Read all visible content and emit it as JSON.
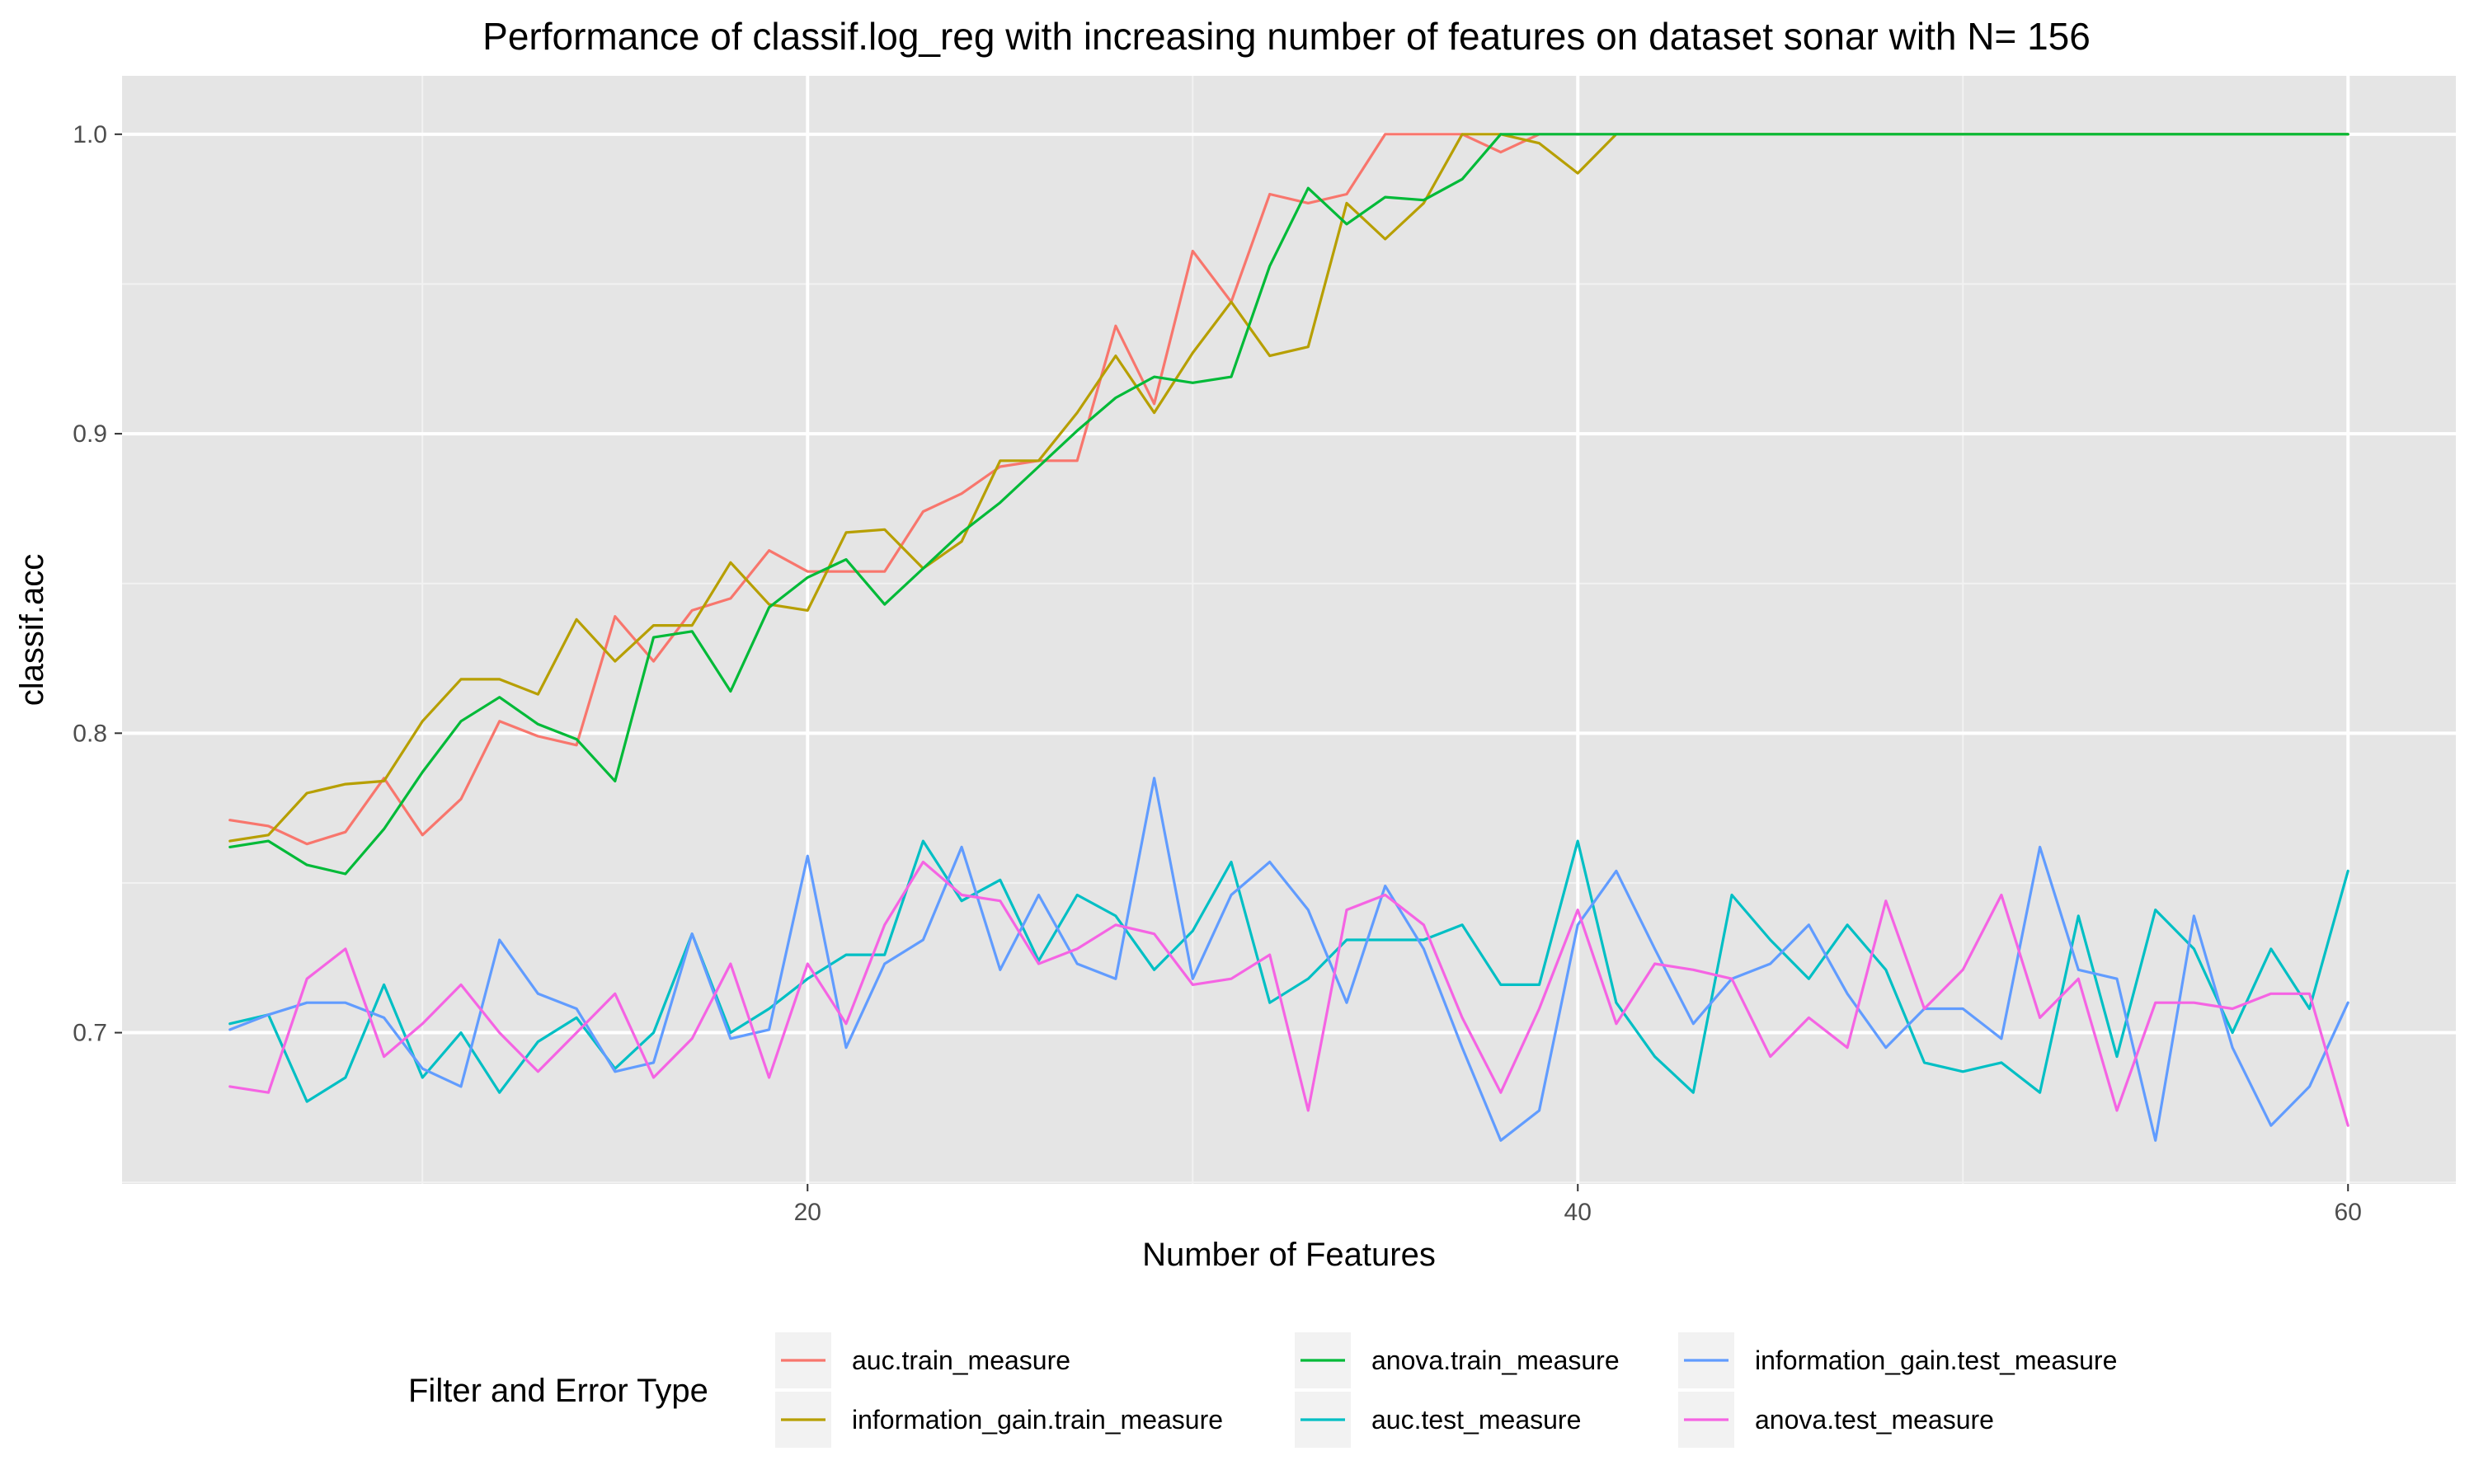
{
  "chart_data": {
    "type": "line",
    "title": "Performance of classif.log_reg with increasing number of features on dataset sonar with N= 156",
    "xlabel": "Number of Features",
    "ylabel": "classif.acc",
    "xlim": [
      2.2,
      62.8
    ],
    "ylim": [
      0.6495,
      1.0195
    ],
    "x_ticks": [
      20,
      40,
      60
    ],
    "x_minor_ticks": [
      10,
      30,
      50
    ],
    "y_ticks": [
      0.7,
      0.8,
      0.9,
      1.0
    ],
    "y_tick_labels": [
      "0.7",
      "0.8",
      "0.9",
      "1.0"
    ],
    "y_minor_ticks": [
      0.65,
      0.75,
      0.85,
      0.95
    ],
    "grid": true,
    "panel_background": "#e5e5e5",
    "legend": {
      "title": "Filter and Error Type",
      "position": "bottom"
    },
    "x": [
      5,
      6,
      7,
      8,
      9,
      10,
      11,
      12,
      13,
      14,
      15,
      16,
      17,
      18,
      19,
      20,
      21,
      22,
      23,
      24,
      25,
      26,
      27,
      28,
      29,
      30,
      31,
      32,
      33,
      34,
      35,
      36,
      37,
      38,
      39,
      40,
      41,
      42,
      43,
      44,
      45,
      46,
      47,
      48,
      49,
      50,
      51,
      52,
      53,
      54,
      55,
      56,
      57,
      58,
      59,
      60
    ],
    "series": [
      {
        "name": "auc.train_measure",
        "color": "#F8766D",
        "values": [
          0.771,
          0.769,
          0.763,
          0.767,
          0.785,
          0.766,
          0.778,
          0.804,
          0.799,
          0.796,
          0.839,
          0.824,
          0.841,
          0.845,
          0.861,
          0.854,
          0.854,
          0.854,
          0.874,
          0.88,
          0.889,
          0.891,
          0.891,
          0.936,
          0.91,
          0.961,
          0.944,
          0.98,
          0.977,
          0.98,
          1.0,
          1.0,
          1.0,
          0.994,
          1.0,
          1.0,
          1.0,
          1.0,
          1.0,
          1.0,
          1.0,
          1.0,
          1.0,
          1.0,
          1.0,
          1.0,
          1.0,
          1.0,
          1.0,
          1.0,
          1.0,
          1.0,
          1.0,
          1.0,
          1.0,
          1.0
        ]
      },
      {
        "name": "information_gain.train_measure",
        "color": "#B79F00",
        "values": [
          0.764,
          0.766,
          0.78,
          0.783,
          0.784,
          0.804,
          0.818,
          0.818,
          0.813,
          0.838,
          0.824,
          0.836,
          0.836,
          0.857,
          0.843,
          0.841,
          0.867,
          0.868,
          0.855,
          0.864,
          0.891,
          0.891,
          0.907,
          0.926,
          0.907,
          0.927,
          0.944,
          0.926,
          0.929,
          0.977,
          0.965,
          0.977,
          1.0,
          1.0,
          0.997,
          0.987,
          1.0,
          1.0,
          1.0,
          1.0,
          1.0,
          1.0,
          1.0,
          1.0,
          1.0,
          1.0,
          1.0,
          1.0,
          1.0,
          1.0,
          1.0,
          1.0,
          1.0,
          1.0,
          1.0,
          1.0
        ]
      },
      {
        "name": "anova.train_measure",
        "color": "#00BA38",
        "values": [
          0.762,
          0.764,
          0.756,
          0.753,
          0.768,
          0.787,
          0.804,
          0.812,
          0.803,
          0.798,
          0.784,
          0.832,
          0.834,
          0.814,
          0.842,
          0.852,
          0.858,
          0.843,
          0.855,
          0.867,
          0.877,
          0.889,
          0.901,
          0.912,
          0.919,
          0.917,
          0.919,
          0.956,
          0.982,
          0.97,
          0.979,
          0.978,
          0.985,
          1.0,
          1.0,
          1.0,
          1.0,
          1.0,
          1.0,
          1.0,
          1.0,
          1.0,
          1.0,
          1.0,
          1.0,
          1.0,
          1.0,
          1.0,
          1.0,
          1.0,
          1.0,
          1.0,
          1.0,
          1.0,
          1.0,
          1.0
        ]
      },
      {
        "name": "auc.test_measure",
        "color": "#00BFC4",
        "values": [
          0.703,
          0.706,
          0.677,
          0.685,
          0.716,
          0.685,
          0.7,
          0.68,
          0.697,
          0.705,
          0.688,
          0.7,
          0.733,
          0.7,
          0.708,
          0.718,
          0.726,
          0.726,
          0.764,
          0.744,
          0.751,
          0.724,
          0.746,
          0.739,
          0.721,
          0.734,
          0.757,
          0.71,
          0.718,
          0.731,
          0.731,
          0.731,
          0.736,
          0.716,
          0.716,
          0.764,
          0.71,
          0.692,
          0.68,
          0.746,
          0.731,
          0.718,
          0.736,
          0.721,
          0.69,
          0.687,
          0.69,
          0.68,
          0.739,
          0.692,
          0.741,
          0.728,
          0.7,
          0.728,
          0.708,
          0.754
        ]
      },
      {
        "name": "information_gain.test_measure",
        "color": "#619CFF",
        "values": [
          0.701,
          0.706,
          0.71,
          0.71,
          0.705,
          0.688,
          0.682,
          0.731,
          0.713,
          0.708,
          0.687,
          0.69,
          0.733,
          0.698,
          0.701,
          0.759,
          0.695,
          0.723,
          0.731,
          0.762,
          0.721,
          0.746,
          0.723,
          0.718,
          0.785,
          0.718,
          0.746,
          0.757,
          0.741,
          0.71,
          0.749,
          0.728,
          0.695,
          0.664,
          0.674,
          0.736,
          0.754,
          0.728,
          0.703,
          0.718,
          0.723,
          0.736,
          0.713,
          0.695,
          0.708,
          0.708,
          0.698,
          0.762,
          0.721,
          0.718,
          0.664,
          0.739,
          0.695,
          0.669,
          0.682,
          0.71
        ]
      },
      {
        "name": "anova.test_measure",
        "color": "#F564E3",
        "values": [
          0.682,
          0.68,
          0.718,
          0.728,
          0.692,
          0.703,
          0.716,
          0.7,
          0.687,
          0.7,
          0.713,
          0.685,
          0.698,
          0.723,
          0.685,
          0.723,
          0.703,
          0.736,
          0.757,
          0.746,
          0.744,
          0.723,
          0.728,
          0.736,
          0.733,
          0.716,
          0.718,
          0.726,
          0.674,
          0.741,
          0.746,
          0.736,
          0.705,
          0.68,
          0.708,
          0.741,
          0.703,
          0.723,
          0.721,
          0.718,
          0.692,
          0.705,
          0.695,
          0.744,
          0.708,
          0.721,
          0.746,
          0.705,
          0.718,
          0.674,
          0.71,
          0.71,
          0.708,
          0.713,
          0.713,
          0.669
        ]
      }
    ]
  }
}
